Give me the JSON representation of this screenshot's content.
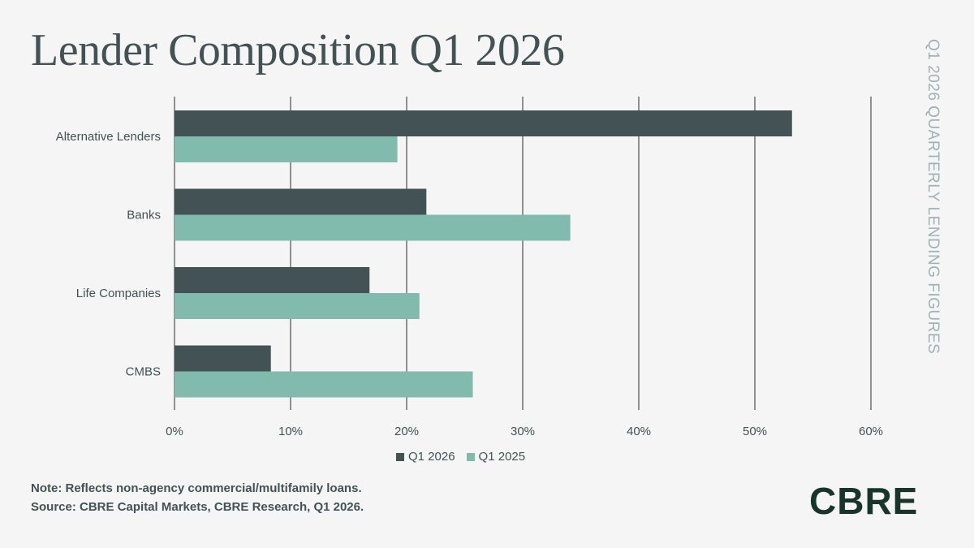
{
  "title": "Lender Composition Q1 2026",
  "side_label": "Q1 2026 QUARTERLY LENDING FIGURES",
  "notes": {
    "note": "Note: Reflects non-agency commercial/multifamily loans.",
    "source": "Source: CBRE Capital Markets, CBRE Research, Q1 2026."
  },
  "logo": "CBRE",
  "colors": {
    "q1_2026": "#435254",
    "q1_2025": "#80bbad",
    "grid": "#2b2b2b",
    "text": "#435254"
  },
  "chart_data": {
    "type": "bar",
    "orientation": "horizontal",
    "categories": [
      "Alternative Lenders",
      "Banks",
      "Life Companies",
      "CMBS"
    ],
    "series": [
      {
        "name": "Q1 2026",
        "values": [
          53.2,
          21.7,
          16.8,
          8.3
        ]
      },
      {
        "name": "Q1 2025",
        "values": [
          19.2,
          34.1,
          21.1,
          25.7
        ]
      }
    ],
    "xlim": [
      0,
      60
    ],
    "xticks": [
      "0%",
      "10%",
      "20%",
      "30%",
      "40%",
      "50%",
      "60%"
    ],
    "grid": true,
    "legend_position": "bottom"
  }
}
